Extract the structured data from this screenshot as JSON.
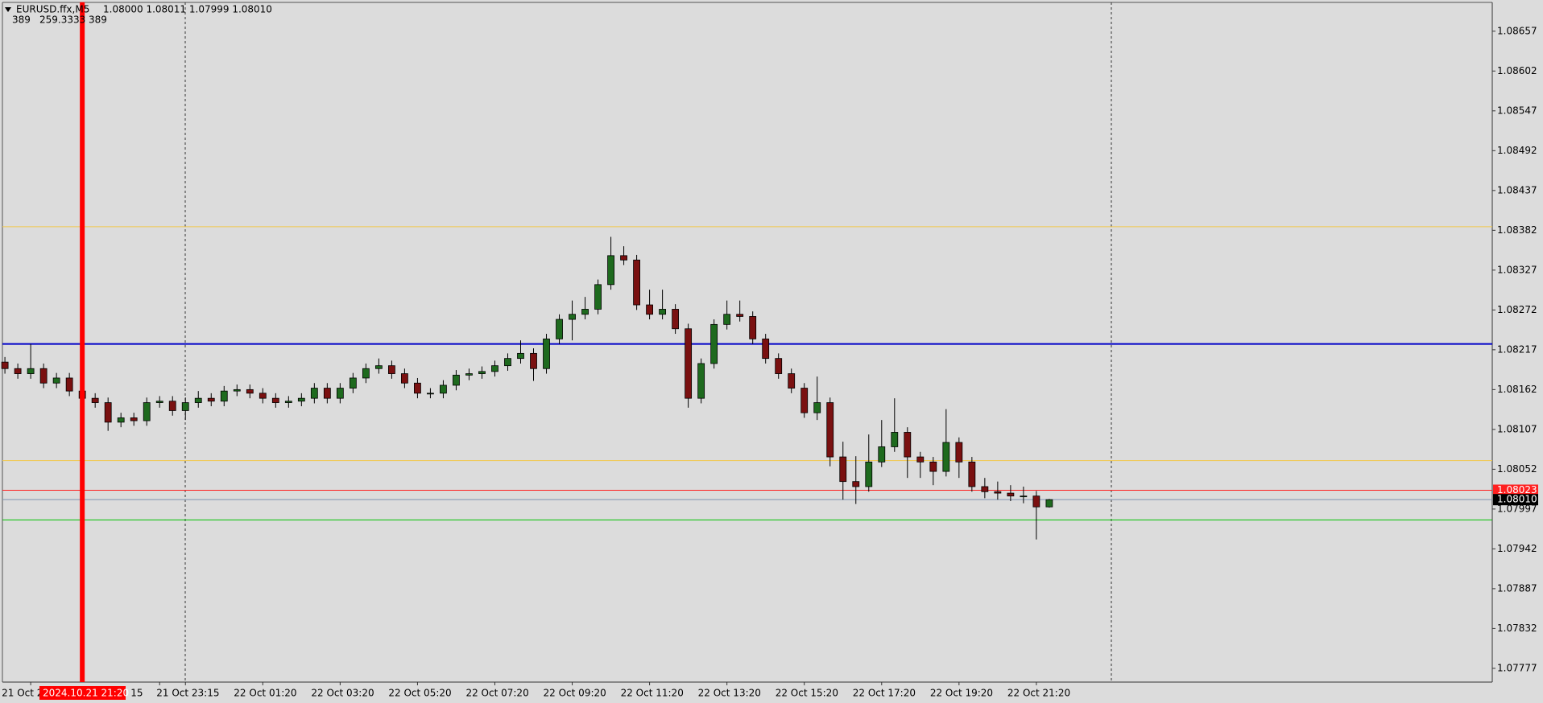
{
  "chart_data": {
    "type": "candlestick",
    "title": "EURUSD.ffx,M5",
    "quote": "1.08000 1.08011 1.07999 1.08010",
    "indicator": [
      "389",
      "259.3333",
      "389"
    ],
    "categories": [
      null,
      null,
      "21 Oct 2",
      null,
      null,
      null,
      null,
      null,
      null,
      null,
      null,
      null,
      "15",
      null,
      "21 Oct 23:15",
      null,
      null,
      null,
      null,
      null,
      "22 Oct 01:20",
      null,
      null,
      null,
      null,
      null,
      "22 Oct 03:20",
      null,
      null,
      null,
      null,
      null,
      "22 Oct 05:20",
      null,
      null,
      null,
      null,
      null,
      "22 Oct 07:20",
      null,
      null,
      null,
      null,
      null,
      "22 Oct 09:20",
      null,
      null,
      null,
      null,
      null,
      "22 Oct 11:20",
      null,
      null,
      null,
      null,
      null,
      "22 Oct 13:20",
      null,
      null,
      null,
      null,
      null,
      "22 Oct 15:20",
      null,
      null,
      null,
      null,
      null,
      "22 Oct 17:20",
      null,
      null,
      null,
      null,
      null,
      "22 Oct 19:20",
      null,
      null,
      null,
      null,
      null,
      "22 Oct 21:20",
      null
    ],
    "open": [
      1.082,
      1.08191,
      1.08184,
      1.08191,
      1.08171,
      1.08178,
      1.0816,
      1.0815,
      1.08144,
      1.08117,
      1.08123,
      1.08119,
      1.08144,
      1.08146,
      1.08133,
      1.08144,
      1.0815,
      1.08146,
      1.0816,
      1.08162,
      1.08157,
      1.0815,
      1.08144,
      1.08146,
      1.0815,
      1.08164,
      1.0815,
      1.08164,
      1.08178,
      1.08191,
      1.08195,
      1.08184,
      1.08171,
      1.08157,
      1.08157,
      1.08168,
      1.08182,
      1.08184,
      1.08187,
      1.08195,
      1.08205,
      1.08212,
      1.08191,
      1.08232,
      1.08259,
      1.08266,
      1.08273,
      1.08307,
      1.08347,
      1.08341,
      1.08279,
      1.08266,
      1.08273,
      1.08246,
      1.0815,
      1.08198,
      1.08252,
      1.08266,
      1.08263,
      1.08232,
      1.08205,
      1.08184,
      1.08164,
      1.0813,
      1.08144,
      1.08069,
      1.08035,
      1.08028,
      1.08062,
      1.08083,
      1.08103,
      1.08069,
      1.08062,
      1.08049,
      1.08089,
      1.08062,
      1.08028,
      1.08021,
      1.08019,
      1.08015,
      1.08015,
      1.08
    ],
    "high": [
      1.08207,
      1.08198,
      1.08225,
      1.08198,
      1.08185,
      1.08185,
      1.08167,
      1.08157,
      1.08151,
      1.0813,
      1.0813,
      1.08151,
      1.08153,
      1.08153,
      1.08151,
      1.0816,
      1.08157,
      1.08167,
      1.08169,
      1.08169,
      1.08164,
      1.08157,
      1.08153,
      1.08157,
      1.08171,
      1.08171,
      1.08171,
      1.08185,
      1.08198,
      1.08205,
      1.08202,
      1.08191,
      1.08178,
      1.08164,
      1.08175,
      1.08189,
      1.08191,
      1.08194,
      1.08202,
      1.08212,
      1.0823,
      1.08219,
      1.08239,
      1.08266,
      1.08285,
      1.0829,
      1.08314,
      1.08373,
      1.0836,
      1.08348,
      1.083,
      1.083,
      1.0828,
      1.08253,
      1.08205,
      1.08259,
      1.08285,
      1.08285,
      1.0827,
      1.08239,
      1.08212,
      1.08191,
      1.08171,
      1.0818,
      1.08151,
      1.0809,
      1.0807,
      1.081,
      1.0812,
      1.0815,
      1.0811,
      1.08076,
      1.08069,
      1.08135,
      1.08096,
      1.08069,
      1.0804,
      1.08035,
      1.0803,
      1.08028,
      1.08022,
      1.08011
    ],
    "low": [
      1.08184,
      1.08177,
      1.08177,
      1.08164,
      1.08164,
      1.08153,
      1.08143,
      1.08137,
      1.08105,
      1.0811,
      1.08112,
      1.08112,
      1.08137,
      1.08126,
      1.0812,
      1.08137,
      1.08139,
      1.08139,
      1.08153,
      1.0815,
      1.08143,
      1.08137,
      1.08137,
      1.08139,
      1.08143,
      1.08143,
      1.08143,
      1.08157,
      1.08171,
      1.08184,
      1.08177,
      1.08164,
      1.0815,
      1.0815,
      1.0815,
      1.08161,
      1.08175,
      1.08177,
      1.0818,
      1.08188,
      1.08198,
      1.08174,
      1.08184,
      1.08225,
      1.0823,
      1.08259,
      1.08266,
      1.083,
      1.08334,
      1.08272,
      1.08259,
      1.08259,
      1.08239,
      1.08137,
      1.08143,
      1.08191,
      1.08245,
      1.08256,
      1.08225,
      1.08198,
      1.08177,
      1.08157,
      1.08123,
      1.0812,
      1.08056,
      1.0801,
      1.08004,
      1.08021,
      1.08055,
      1.08076,
      1.0804,
      1.0804,
      1.0803,
      1.08042,
      1.0804,
      1.08021,
      1.08012,
      1.0801,
      1.08008,
      1.08005,
      1.07955,
      1.07999
    ],
    "close": [
      1.08191,
      1.08184,
      1.08191,
      1.08171,
      1.08178,
      1.0816,
      1.0815,
      1.08144,
      1.08117,
      1.08123,
      1.08119,
      1.08144,
      1.08146,
      1.08133,
      1.08144,
      1.0815,
      1.08146,
      1.0816,
      1.08162,
      1.08157,
      1.0815,
      1.08144,
      1.08146,
      1.0815,
      1.08164,
      1.0815,
      1.08164,
      1.08178,
      1.08191,
      1.08195,
      1.08184,
      1.08171,
      1.08157,
      1.08157,
      1.08168,
      1.08182,
      1.08184,
      1.08187,
      1.08195,
      1.08205,
      1.08212,
      1.08191,
      1.08232,
      1.08259,
      1.08266,
      1.08273,
      1.08307,
      1.08347,
      1.08341,
      1.08279,
      1.08266,
      1.08273,
      1.08246,
      1.0815,
      1.08198,
      1.08252,
      1.08266,
      1.08263,
      1.08232,
      1.08205,
      1.08184,
      1.08164,
      1.0813,
      1.08144,
      1.08069,
      1.08035,
      1.08028,
      1.08062,
      1.08083,
      1.08103,
      1.08069,
      1.08062,
      1.08049,
      1.08089,
      1.08062,
      1.08028,
      1.08021,
      1.08019,
      1.08015,
      1.08015,
      1.08,
      1.0801
    ],
    "up_color": "#1e6a1e",
    "down_color": "#7a1010",
    "wick_color": "#000000",
    "ylim": [
      1.07758,
      1.08696
    ],
    "yticks": [
      1.08657,
      1.08602,
      1.08547,
      1.08492,
      1.08437,
      1.08382,
      1.08327,
      1.08272,
      1.08217,
      1.08162,
      1.08107,
      1.08052,
      1.07997,
      1.07942,
      1.07887,
      1.07832,
      1.07777
    ],
    "hlines": [
      {
        "value": 1.08387,
        "color": "#f2c84b"
      },
      {
        "value": 1.08225,
        "color": "#0000c8"
      },
      {
        "value": 1.08064,
        "color": "#f2c84b"
      },
      {
        "value": 1.08023,
        "color": "#ff2020",
        "label": "1.08023"
      },
      {
        "value": 1.0801,
        "color": "#7f93b0",
        "label": "1.08010"
      },
      {
        "value": 1.07982,
        "color": "#00c000"
      }
    ],
    "marker": {
      "x": 6,
      "label": "2024.10.21 21:20",
      "color": "#ff0000"
    }
  }
}
